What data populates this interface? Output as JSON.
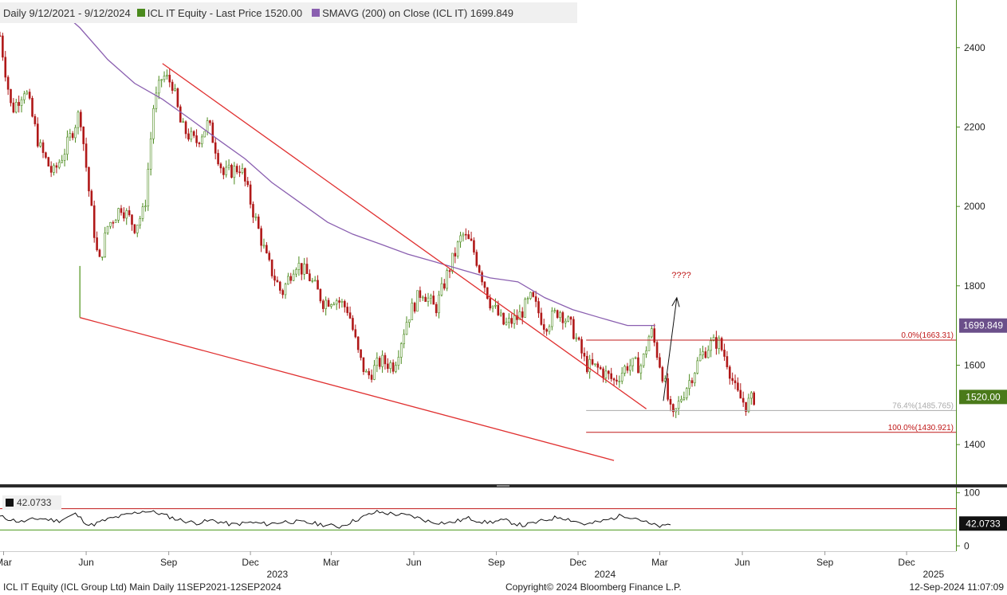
{
  "legend": {
    "period": "Daily 9/12/2021 - 9/12/2024",
    "price": "ICL IT Equity - Last Price 1520.00",
    "sma": "SMAVG (200)  on Close (ICL IT) 1699.849",
    "price_color": "#4a8a1c",
    "sma_color": "#8a5fb0"
  },
  "sub_legend": {
    "value": "42.0733"
  },
  "footer": {
    "left": "ICL IT Equity (ICL Group Ltd) Main  Daily 11SEP2021-12SEP2024",
    "center": "Copyright© 2024 Bloomberg Finance L.P.",
    "right": "12-Sep-2024 11:07:09"
  },
  "chart_data": {
    "type": "line",
    "title": "",
    "xlabel": "",
    "ylabel": "",
    "ylim": [
      1300,
      2520
    ],
    "y_ticks": [
      1400,
      1600,
      1800,
      2000,
      2200,
      2400
    ],
    "x_range": [
      "2022-02-25",
      "2025-01-25"
    ],
    "x_month_labels": [
      {
        "label": "Mar",
        "date": "2022-03-01"
      },
      {
        "label": "Jun",
        "date": "2022-06-01"
      },
      {
        "label": "Sep",
        "date": "2022-09-01"
      },
      {
        "label": "Dec",
        "date": "2022-12-01"
      },
      {
        "label": "Mar",
        "date": "2023-03-01"
      },
      {
        "label": "Jun",
        "date": "2023-06-01"
      },
      {
        "label": "Sep",
        "date": "2023-09-01"
      },
      {
        "label": "Dec",
        "date": "2023-12-01"
      },
      {
        "label": "Mar",
        "date": "2024-03-01"
      },
      {
        "label": "Jun",
        "date": "2024-06-01"
      },
      {
        "label": "Sep",
        "date": "2024-09-01"
      },
      {
        "label": "Dec",
        "date": "2024-12-01"
      }
    ],
    "x_year_labels": [
      {
        "label": "2023",
        "date": "2022-12-31"
      },
      {
        "label": "2024",
        "date": "2023-12-31"
      },
      {
        "label": "2025",
        "date": "2024-12-31"
      }
    ],
    "series": [
      {
        "name": "ICL IT Equity - Last Price",
        "style": "candlestick",
        "color": "#4a8a1c",
        "down_color": "#b01818",
        "points": [
          [
            "2022-02-25",
            2430
          ],
          [
            "2022-03-10",
            2240
          ],
          [
            "2022-03-25",
            2300
          ],
          [
            "2022-04-10",
            2150
          ],
          [
            "2022-04-25",
            2080
          ],
          [
            "2022-05-10",
            2150
          ],
          [
            "2022-05-25",
            2240
          ],
          [
            "2022-06-05",
            2020
          ],
          [
            "2022-06-15",
            1850
          ],
          [
            "2022-06-25",
            1950
          ],
          [
            "2022-07-10",
            2000
          ],
          [
            "2022-07-25",
            1950
          ],
          [
            "2022-08-05",
            1990
          ],
          [
            "2022-08-15",
            2250
          ],
          [
            "2022-08-25",
            2330
          ],
          [
            "2022-09-05",
            2310
          ],
          [
            "2022-09-15",
            2200
          ],
          [
            "2022-10-01",
            2160
          ],
          [
            "2022-10-15",
            2210
          ],
          [
            "2022-11-01",
            2080
          ],
          [
            "2022-11-20",
            2100
          ],
          [
            "2022-12-05",
            1980
          ],
          [
            "2022-12-20",
            1860
          ],
          [
            "2023-01-05",
            1780
          ],
          [
            "2023-01-20",
            1860
          ],
          [
            "2023-02-05",
            1820
          ],
          [
            "2023-02-20",
            1760
          ],
          [
            "2023-03-05",
            1770
          ],
          [
            "2023-03-20",
            1740
          ],
          [
            "2023-04-01",
            1620
          ],
          [
            "2023-04-10",
            1570
          ],
          [
            "2023-04-25",
            1610
          ],
          [
            "2023-05-10",
            1600
          ],
          [
            "2023-05-25",
            1720
          ],
          [
            "2023-06-10",
            1790
          ],
          [
            "2023-06-25",
            1740
          ],
          [
            "2023-07-10",
            1840
          ],
          [
            "2023-07-25",
            1930
          ],
          [
            "2023-08-05",
            1900
          ],
          [
            "2023-08-15",
            1830
          ],
          [
            "2023-08-25",
            1760
          ],
          [
            "2023-09-10",
            1700
          ],
          [
            "2023-09-25",
            1720
          ],
          [
            "2023-10-10",
            1770
          ],
          [
            "2023-10-25",
            1700
          ],
          [
            "2023-11-10",
            1740
          ],
          [
            "2023-11-25",
            1690
          ],
          [
            "2023-12-10",
            1600
          ],
          [
            "2023-12-25",
            1590
          ],
          [
            "2024-01-10",
            1560
          ],
          [
            "2024-01-25",
            1600
          ],
          [
            "2024-02-10",
            1600
          ],
          [
            "2024-02-20",
            1690
          ],
          [
            "2024-03-05",
            1570
          ],
          [
            "2024-03-15",
            1460
          ],
          [
            "2024-03-25",
            1520
          ],
          [
            "2024-04-05",
            1570
          ],
          [
            "2024-04-15",
            1620
          ],
          [
            "2024-04-25",
            1650
          ],
          [
            "2024-05-05",
            1660
          ],
          [
            "2024-05-15",
            1610
          ],
          [
            "2024-05-25",
            1530
          ],
          [
            "2024-06-05",
            1500
          ],
          [
            "2024-06-15",
            1520
          ]
        ]
      },
      {
        "name": "SMAVG (200) on Close (ICL IT)",
        "style": "line",
        "color": "#8a5fb0",
        "points": [
          [
            "2022-04-25",
            2510
          ],
          [
            "2022-05-25",
            2450
          ],
          [
            "2022-06-25",
            2370
          ],
          [
            "2022-07-25",
            2310
          ],
          [
            "2022-08-25",
            2270
          ],
          [
            "2022-09-25",
            2220
          ],
          [
            "2022-10-25",
            2170
          ],
          [
            "2022-11-25",
            2120
          ],
          [
            "2022-12-25",
            2060
          ],
          [
            "2023-01-25",
            2010
          ],
          [
            "2023-02-25",
            1960
          ],
          [
            "2023-03-25",
            1930
          ],
          [
            "2023-04-25",
            1905
          ],
          [
            "2023-05-25",
            1880
          ],
          [
            "2023-06-25",
            1860
          ],
          [
            "2023-07-25",
            1840
          ],
          [
            "2023-08-25",
            1820
          ],
          [
            "2023-09-25",
            1810
          ],
          [
            "2023-10-25",
            1770
          ],
          [
            "2023-11-25",
            1740
          ],
          [
            "2023-12-25",
            1720
          ],
          [
            "2024-01-25",
            1700
          ],
          [
            "2024-02-25",
            1700
          ]
        ]
      }
    ],
    "trendlines": [
      {
        "from": [
          "2022-08-25",
          2360
        ],
        "to": [
          "2024-02-15",
          1490
        ],
        "color": "#e03030"
      },
      {
        "from": [
          "2022-05-25",
          1720
        ],
        "to": [
          "2024-01-10",
          1360
        ],
        "color": "#e03030"
      },
      {
        "from": [
          "2022-05-25",
          1720
        ],
        "to": [
          "2022-05-25",
          1850
        ],
        "color": "#5a9a2a"
      }
    ],
    "fibonacci": [
      {
        "label": "0.0%(1663.31)",
        "value": 1663.31,
        "color": "#c01818",
        "from": "2023-12-10"
      },
      {
        "label": "76.4%(1485.765)",
        "value": 1485.765,
        "color": "#aaaaaa",
        "from": "2023-12-10"
      },
      {
        "label": "100.0%(1430.921)",
        "value": 1430.921,
        "color": "#c01818",
        "from": "2023-12-10"
      }
    ],
    "projection": {
      "from": [
        "2024-03-05",
        1510
      ],
      "to": [
        "2024-03-20",
        1770
      ],
      "annotation": "????",
      "annotation_at": [
        "2024-03-25",
        1820
      ]
    },
    "last_values": [
      {
        "label": "1699.849",
        "value": 1699.849,
        "bg": "#6b4f8a"
      },
      {
        "label": "1520.00",
        "value": 1520.0,
        "bg": "#4a7a1a"
      }
    ],
    "oscillator": {
      "ylim": [
        -10,
        110
      ],
      "y_ticks": [
        0,
        100
      ],
      "upper": 70,
      "lower": 30,
      "last": 42.0733,
      "points": [
        [
          "2022-02-25",
          55
        ],
        [
          "2022-03-20",
          45
        ],
        [
          "2022-04-10",
          52
        ],
        [
          "2022-05-01",
          47
        ],
        [
          "2022-05-20",
          60
        ],
        [
          "2022-06-05",
          38
        ],
        [
          "2022-06-25",
          50
        ],
        [
          "2022-07-15",
          58
        ],
        [
          "2022-08-05",
          66
        ],
        [
          "2022-08-20",
          62
        ],
        [
          "2022-09-10",
          50
        ],
        [
          "2022-10-01",
          43
        ],
        [
          "2022-10-20",
          48
        ],
        [
          "2022-11-10",
          40
        ],
        [
          "2022-12-01",
          44
        ],
        [
          "2022-12-20",
          41
        ],
        [
          "2023-01-10",
          46
        ],
        [
          "2023-02-01",
          44
        ],
        [
          "2023-02-20",
          40
        ],
        [
          "2023-03-10",
          36
        ],
        [
          "2023-03-30",
          50
        ],
        [
          "2023-04-20",
          64
        ],
        [
          "2023-05-10",
          60
        ],
        [
          "2023-05-30",
          56
        ],
        [
          "2023-06-20",
          45
        ],
        [
          "2023-07-10",
          43
        ],
        [
          "2023-08-01",
          52
        ],
        [
          "2023-08-20",
          44
        ],
        [
          "2023-09-10",
          48
        ],
        [
          "2023-10-01",
          38
        ],
        [
          "2023-10-20",
          46
        ],
        [
          "2023-11-10",
          55
        ],
        [
          "2023-11-25",
          48
        ],
        [
          "2023-12-10",
          40
        ],
        [
          "2024-01-01",
          48
        ],
        [
          "2024-01-20",
          58
        ],
        [
          "2024-02-05",
          52
        ],
        [
          "2024-02-20",
          40
        ],
        [
          "2024-03-05",
          36
        ],
        [
          "2024-03-15",
          42
        ]
      ]
    }
  }
}
